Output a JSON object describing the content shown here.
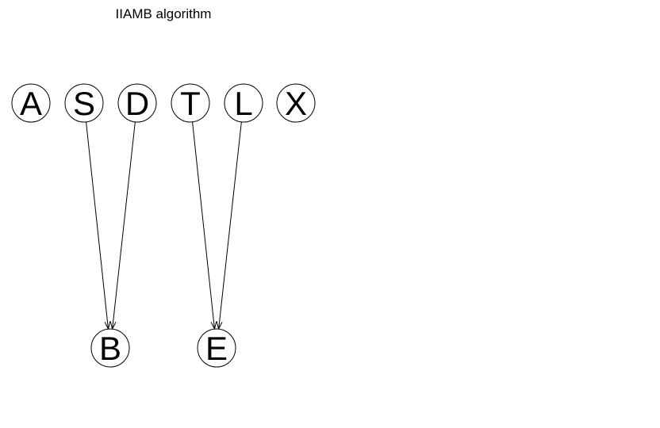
{
  "title": "IIAMB algorithm",
  "colors": {
    "background": "#ffffff",
    "stroke": "#000000",
    "text": "#000000"
  },
  "nodes": [
    {
      "id": "A",
      "label": "A"
    },
    {
      "id": "S",
      "label": "S"
    },
    {
      "id": "D",
      "label": "D"
    },
    {
      "id": "T",
      "label": "T"
    },
    {
      "id": "L",
      "label": "L"
    },
    {
      "id": "X",
      "label": "X"
    },
    {
      "id": "B",
      "label": "B"
    },
    {
      "id": "E",
      "label": "E"
    }
  ],
  "edges": [
    {
      "from": "S",
      "to": "B"
    },
    {
      "from": "D",
      "to": "B"
    },
    {
      "from": "T",
      "to": "E"
    },
    {
      "from": "L",
      "to": "E"
    }
  ]
}
